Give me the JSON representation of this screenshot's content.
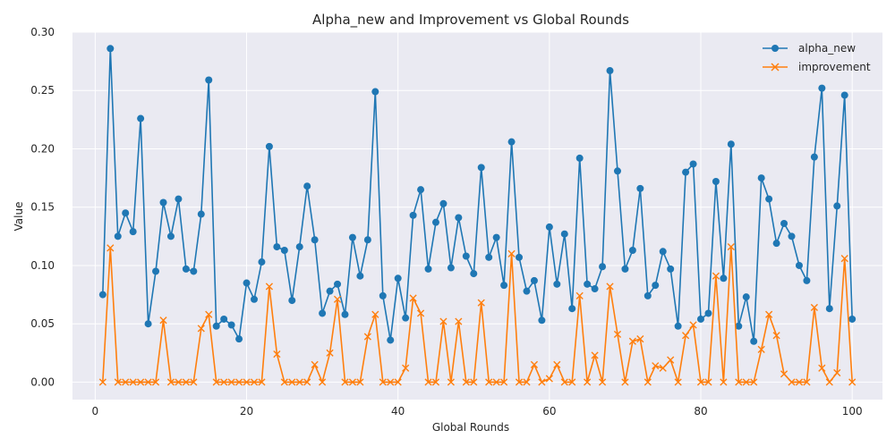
{
  "chart_data": {
    "type": "line",
    "title": "Alpha_new and Improvement vs Global Rounds",
    "xlabel": "Global Rounds",
    "ylabel": "Value",
    "xlim": [
      -3,
      104
    ],
    "ylim": [
      -0.015,
      0.3
    ],
    "xticks": [
      0,
      20,
      40,
      60,
      80,
      100
    ],
    "yticks": [
      0.0,
      0.05,
      0.1,
      0.15,
      0.2,
      0.25,
      0.3
    ],
    "grid": true,
    "legend_position": "top-right",
    "x": [
      1,
      2,
      3,
      4,
      5,
      6,
      7,
      8,
      9,
      10,
      11,
      12,
      13,
      14,
      15,
      16,
      17,
      18,
      19,
      20,
      21,
      22,
      23,
      24,
      25,
      26,
      27,
      28,
      29,
      30,
      31,
      32,
      33,
      34,
      35,
      36,
      37,
      38,
      39,
      40,
      41,
      42,
      43,
      44,
      45,
      46,
      47,
      48,
      49,
      50,
      51,
      52,
      53,
      54,
      55,
      56,
      57,
      58,
      59,
      60,
      61,
      62,
      63,
      64,
      65,
      66,
      67,
      68,
      69,
      70,
      71,
      72,
      73,
      74,
      75,
      76,
      77,
      78,
      79,
      80,
      81,
      82,
      83,
      84,
      85,
      86,
      87,
      88,
      89,
      90,
      91,
      92,
      93,
      94,
      95,
      96,
      97,
      98,
      99,
      100
    ],
    "series": [
      {
        "name": "alpha_new",
        "color": "#1f77b4",
        "marker": "circle",
        "values": [
          0.075,
          0.286,
          0.125,
          0.145,
          0.129,
          0.226,
          0.05,
          0.095,
          0.154,
          0.125,
          0.157,
          0.097,
          0.095,
          0.144,
          0.259,
          0.048,
          0.054,
          0.049,
          0.037,
          0.085,
          0.071,
          0.103,
          0.202,
          0.116,
          0.113,
          0.07,
          0.116,
          0.168,
          0.122,
          0.059,
          0.078,
          0.084,
          0.058,
          0.124,
          0.091,
          0.122,
          0.249,
          0.074,
          0.036,
          0.089,
          0.055,
          0.143,
          0.165,
          0.097,
          0.137,
          0.153,
          0.098,
          0.141,
          0.108,
          0.093,
          0.184,
          0.107,
          0.124,
          0.083,
          0.206,
          0.107,
          0.078,
          0.087,
          0.053,
          0.133,
          0.084,
          0.127,
          0.063,
          0.192,
          0.084,
          0.08,
          0.099,
          0.267,
          0.181,
          0.097,
          0.113,
          0.166,
          0.074,
          0.083,
          0.112,
          0.097,
          0.048,
          0.18,
          0.187,
          0.054,
          0.059,
          0.172,
          0.089,
          0.204,
          0.048,
          0.073,
          0.035,
          0.175,
          0.157,
          0.119,
          0.136,
          0.125,
          0.1,
          0.087,
          0.193,
          0.252,
          0.063,
          0.151,
          0.246,
          0.054
        ]
      },
      {
        "name": "improvement",
        "color": "#ff7f0e",
        "marker": "x",
        "values": [
          0.0,
          0.115,
          0.0,
          0.0,
          0.0,
          0.0,
          0.0,
          0.0,
          0.053,
          0.0,
          0.0,
          0.0,
          0.0,
          0.046,
          0.058,
          0.0,
          0.0,
          0.0,
          0.0,
          0.0,
          0.0,
          0.0,
          0.082,
          0.024,
          0.0,
          0.0,
          0.0,
          0.0,
          0.015,
          0.0,
          0.025,
          0.071,
          0.0,
          0.0,
          0.0,
          0.039,
          0.058,
          0.0,
          0.0,
          0.0,
          0.012,
          0.072,
          0.059,
          0.0,
          0.0,
          0.052,
          0.0,
          0.052,
          0.0,
          0.0,
          0.068,
          0.0,
          0.0,
          0.0,
          0.11,
          0.0,
          0.0,
          0.015,
          0.0,
          0.003,
          0.015,
          0.0,
          0.0,
          0.074,
          0.0,
          0.023,
          0.0,
          0.082,
          0.041,
          0.0,
          0.035,
          0.037,
          0.0,
          0.014,
          0.012,
          0.019,
          0.0,
          0.04,
          0.049,
          0.0,
          0.0,
          0.091,
          0.0,
          0.116,
          0.0,
          0.0,
          0.0,
          0.028,
          0.058,
          0.04,
          0.007,
          0.0,
          0.0,
          0.0,
          0.064,
          0.012,
          0.0,
          0.008,
          0.106,
          0.0
        ]
      }
    ]
  }
}
